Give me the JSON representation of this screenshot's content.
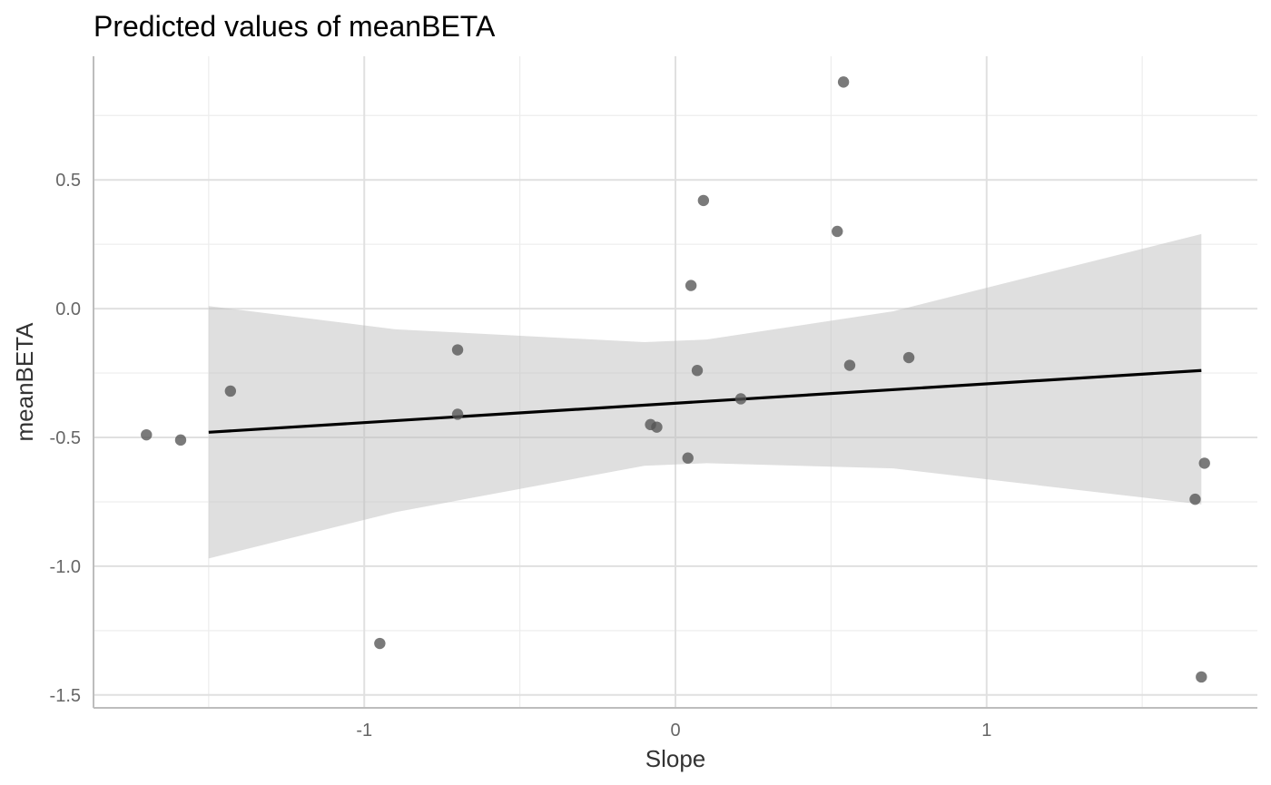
{
  "chart_data": {
    "type": "scatter",
    "title": "Predicted values of meanBETA",
    "xlabel": "Slope",
    "ylabel": "meanBETA",
    "xlim": [
      -1.87,
      1.87
    ],
    "ylim": [
      -1.55,
      0.98
    ],
    "x_ticks": [
      -1,
      0,
      1
    ],
    "x_tick_labels": [
      "-1",
      "0",
      "1"
    ],
    "x_minor_ticks": [
      -1.5,
      -0.5,
      0.5,
      1.5
    ],
    "y_ticks": [
      -1.5,
      -1.0,
      -0.5,
      0.0,
      0.5
    ],
    "y_tick_labels": [
      "-1.5",
      "-1.0",
      "-0.5",
      "0.0",
      "0.5"
    ],
    "y_minor_ticks": [
      -1.25,
      -0.75,
      -0.25,
      0.25,
      0.75
    ],
    "grid": true,
    "points": [
      {
        "x": -1.7,
        "y": -0.49
      },
      {
        "x": -1.59,
        "y": -0.51
      },
      {
        "x": -1.43,
        "y": -0.32
      },
      {
        "x": -0.95,
        "y": -1.3
      },
      {
        "x": -0.7,
        "y": -0.16
      },
      {
        "x": -0.7,
        "y": -0.41
      },
      {
        "x": -0.08,
        "y": -0.45
      },
      {
        "x": -0.06,
        "y": -0.46
      },
      {
        "x": 0.04,
        "y": -0.58
      },
      {
        "x": 0.05,
        "y": 0.09
      },
      {
        "x": 0.07,
        "y": -0.24
      },
      {
        "x": 0.09,
        "y": 0.42
      },
      {
        "x": 0.21,
        "y": -0.35
      },
      {
        "x": 0.52,
        "y": 0.3
      },
      {
        "x": 0.54,
        "y": 0.88
      },
      {
        "x": 0.56,
        "y": -0.22
      },
      {
        "x": 0.75,
        "y": -0.19
      },
      {
        "x": 1.67,
        "y": -0.74
      },
      {
        "x": 1.69,
        "y": -1.43
      },
      {
        "x": 1.7,
        "y": -0.6
      }
    ],
    "fit_line": {
      "x": [
        -1.5,
        1.69
      ],
      "y": [
        -0.48,
        -0.24
      ]
    },
    "confidence_band": {
      "x": [
        -1.5,
        -0.9,
        -0.1,
        0.1,
        0.7,
        1.69
      ],
      "upper": [
        0.01,
        -0.08,
        -0.13,
        -0.12,
        -0.01,
        0.29
      ],
      "lower": [
        -0.97,
        -0.79,
        -0.61,
        -0.6,
        -0.62,
        -0.76
      ]
    },
    "colors": {
      "points": "#555555",
      "line": "#000000",
      "band": "#bdbdbd",
      "grid_major": "#e0e0e0",
      "grid_minor": "#ededed",
      "axis": "#bdbdbd"
    }
  }
}
